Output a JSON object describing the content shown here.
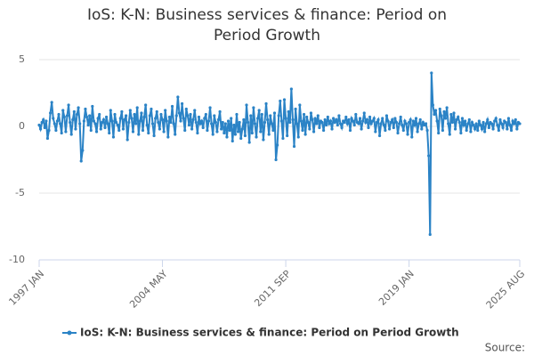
{
  "chart_data": {
    "type": "line",
    "title": "IoS: K-N: Business services & finance: Period on Period Growth",
    "source": "Source:",
    "categories": [
      "1997 JAN",
      null,
      null,
      null,
      null,
      null,
      null,
      null,
      null,
      null,
      null,
      null,
      null,
      null,
      null,
      null,
      null,
      null,
      null,
      null,
      null,
      null,
      null,
      null,
      null,
      null,
      null,
      null,
      null,
      null,
      null,
      null,
      null,
      null,
      null,
      null,
      null,
      null,
      null,
      null,
      null,
      null,
      null,
      null,
      null,
      null,
      null,
      null,
      null,
      null,
      null,
      null,
      null,
      null,
      null,
      null,
      null,
      null,
      null,
      null,
      null,
      null,
      null,
      null,
      null,
      null,
      null,
      null,
      null,
      null,
      null,
      null,
      null,
      null,
      null,
      null,
      null,
      null,
      null,
      null,
      null,
      null,
      null,
      null,
      null,
      null,
      null,
      null,
      "2004 MAY",
      null,
      null,
      null,
      null,
      null,
      null,
      null,
      null,
      null,
      null,
      null,
      null,
      null,
      null,
      null,
      null,
      null,
      null,
      null,
      null,
      null,
      null,
      null,
      null,
      null,
      null,
      null,
      null,
      null,
      null,
      null,
      null,
      null,
      null,
      null,
      null,
      null,
      null,
      null,
      null,
      null,
      null,
      null,
      null,
      null,
      null,
      null,
      null,
      null,
      null,
      null,
      null,
      null,
      null,
      null,
      null,
      null,
      null,
      null,
      null,
      null,
      null,
      null,
      null,
      null,
      null,
      null,
      null,
      null,
      null,
      null,
      null,
      null,
      null,
      null,
      null,
      null,
      null,
      null,
      null,
      null,
      null,
      null,
      null,
      null,
      null,
      null,
      "2011 SEP",
      null,
      null,
      null,
      null,
      null,
      null,
      null,
      null,
      null,
      null,
      null,
      null,
      null,
      null,
      null,
      null,
      null,
      null,
      null,
      null,
      null,
      null,
      null,
      null,
      null,
      null,
      null,
      null,
      null,
      null,
      null,
      null,
      null,
      null,
      null,
      null,
      null,
      null,
      null,
      null,
      null,
      null,
      null,
      null,
      null,
      null,
      null,
      null,
      null,
      null,
      null,
      null,
      null,
      null,
      null,
      null,
      null,
      null,
      null,
      null,
      null,
      null,
      null,
      null,
      null,
      null,
      null,
      null,
      null,
      null,
      null,
      null,
      null,
      null,
      null,
      null,
      null,
      null,
      null,
      null,
      null,
      null,
      null,
      null,
      null,
      null,
      null,
      "2019 JAN",
      null,
      null,
      null,
      null,
      null,
      null,
      null,
      null,
      null,
      null,
      null,
      null,
      null,
      null,
      null,
      null,
      null,
      null,
      null,
      null,
      null,
      null,
      null,
      null,
      null,
      null,
      null,
      null,
      null,
      null,
      null,
      null,
      null,
      null,
      null,
      null,
      null,
      null,
      null,
      null,
      null,
      null,
      null,
      null,
      null,
      null,
      null,
      null,
      null,
      null,
      null,
      null,
      null,
      null,
      null,
      null,
      null,
      null,
      null,
      null,
      null,
      null,
      null,
      null,
      null,
      null,
      null,
      null,
      null,
      null,
      null,
      null,
      null,
      null,
      null,
      null,
      null,
      null,
      "2025 AUG"
    ],
    "series": [
      {
        "name": "IoS: K-N: Business services & finance: Period on Period Growth",
        "color": "#2b83c6",
        "values": [
          0.1,
          -0.2,
          0.3,
          0.5,
          -0.1,
          0.4,
          -0.9,
          -0.3,
          1.0,
          1.8,
          0.6,
          0.2,
          -0.3,
          0.4,
          0.9,
          0.2,
          -0.5,
          1.2,
          0.7,
          -0.4,
          0.8,
          1.6,
          0.3,
          -0.6,
          0.5,
          1.1,
          -0.2,
          0.9,
          1.4,
          0.2,
          -2.6,
          -1.8,
          0.4,
          1.3,
          0.7,
          0.1,
          0.8,
          -0.3,
          1.5,
          0.4,
          0.2,
          -0.4,
          0.6,
          0.9,
          -0.2,
          0.3,
          0.5,
          -0.1,
          0.7,
          0.2,
          -0.5,
          1.2,
          0.4,
          -0.8,
          0.9,
          0.3,
          0.1,
          -0.3,
          0.6,
          1.1,
          -0.2,
          0.5,
          0.8,
          -1.0,
          0.3,
          1.2,
          0.6,
          -0.4,
          0.9,
          0.2,
          1.4,
          -0.6,
          0.4,
          1.0,
          -0.3,
          0.7,
          1.6,
          0.1,
          -0.5,
          0.8,
          1.3,
          0.2,
          -0.7,
          0.6,
          1.1,
          0.3,
          -0.2,
          0.9,
          0.5,
          -0.4,
          1.2,
          0.4,
          -0.8,
          0.7,
          0.3,
          1.5,
          0.2,
          -0.6,
          0.8,
          2.2,
          1.0,
          0.4,
          1.7,
          0.6,
          -0.3,
          1.3,
          0.8,
          0.1,
          0.9,
          -0.2,
          0.5,
          1.2,
          0.3,
          -0.5,
          0.7,
          0.2,
          0.4,
          -0.1,
          0.6,
          0.9,
          -0.3,
          0.4,
          1.4,
          0.2,
          -0.6,
          0.8,
          0.3,
          -0.4,
          0.5,
          1.1,
          -0.2,
          0.3,
          -0.5,
          0.2,
          -0.8,
          0.4,
          -0.3,
          0.6,
          -1.1,
          0.1,
          -0.6,
          0.9,
          -0.4,
          0.3,
          -0.9,
          -0.2,
          0.5,
          -0.7,
          1.6,
          0.3,
          -1.2,
          0.8,
          -0.5,
          1.4,
          0.2,
          -0.8,
          0.6,
          1.2,
          -0.4,
          0.9,
          -1.0,
          0.3,
          1.7,
          0.5,
          -0.6,
          0.8,
          0.2,
          -0.3,
          1.0,
          -2.5,
          -1.4,
          0.8,
          1.9,
          0.4,
          -0.9,
          2.0,
          0.6,
          -0.7,
          1.1,
          0.3,
          2.8,
          0.5,
          -1.5,
          1.3,
          0.2,
          -0.8,
          1.6,
          0.4,
          -0.3,
          0.9,
          -0.6,
          0.7,
          0.3,
          -0.2,
          1.0,
          0.5,
          -0.4,
          0.6,
          0.2,
          0.8,
          -0.1,
          0.4,
          0.3,
          -0.3,
          0.5,
          0.1,
          0.7,
          0.2,
          0.4,
          -0.2,
          0.6,
          0.3,
          0.5,
          0.1,
          0.8,
          0.2,
          -0.1,
          0.4,
          0.3,
          0.7,
          0.2,
          0.5,
          -0.3,
          0.6,
          0.4,
          0.1,
          0.9,
          0.3,
          0.2,
          0.6,
          -0.2,
          0.4,
          1.0,
          0.3,
          0.5,
          -0.1,
          0.7,
          0.2,
          0.4,
          0.6,
          -0.4,
          0.3,
          0.5,
          -0.7,
          0.2,
          0.6,
          0.1,
          -0.3,
          0.8,
          0.4,
          -0.2,
          0.3,
          0.5,
          -0.1,
          0.6,
          0.3,
          -0.5,
          0.2,
          0.7,
          0.1,
          -0.3,
          0.4,
          0.2,
          -0.6,
          0.3,
          0.5,
          -0.8,
          0.4,
          0.1,
          0.6,
          -0.4,
          0.2,
          0.5,
          -0.2,
          0.3,
          0.1,
          0.2,
          -0.3,
          -2.2,
          -8.1,
          4.0,
          1.6,
          0.9,
          1.2,
          0.4,
          -0.5,
          1.3,
          0.8,
          -0.3,
          1.1,
          0.6,
          1.4,
          0.2,
          -0.6,
          0.9,
          0.3,
          1.0,
          -0.2,
          0.5,
          0.7,
          0.3,
          -0.5,
          0.6,
          0.1,
          0.4,
          -0.3,
          0.2,
          0.5,
          -0.4,
          0.3,
          0.1,
          -0.2,
          0.2,
          -0.3,
          0.4,
          0.1,
          -0.2,
          0.3,
          -0.4,
          0.2,
          0.5,
          -0.1,
          0.3,
          0.2,
          -0.2,
          0.4,
          0.6,
          0.1,
          -0.3,
          0.5,
          0.2,
          -0.1,
          0.4,
          0.3,
          -0.2,
          0.6,
          0.1,
          -0.3,
          0.4,
          0.2,
          0.5,
          -0.2,
          0.3,
          0.2
        ]
      }
    ],
    "ylim": [
      -10,
      5
    ],
    "yticks": [
      -10,
      -5,
      0,
      5
    ],
    "grid": true,
    "legend": "bottom"
  }
}
